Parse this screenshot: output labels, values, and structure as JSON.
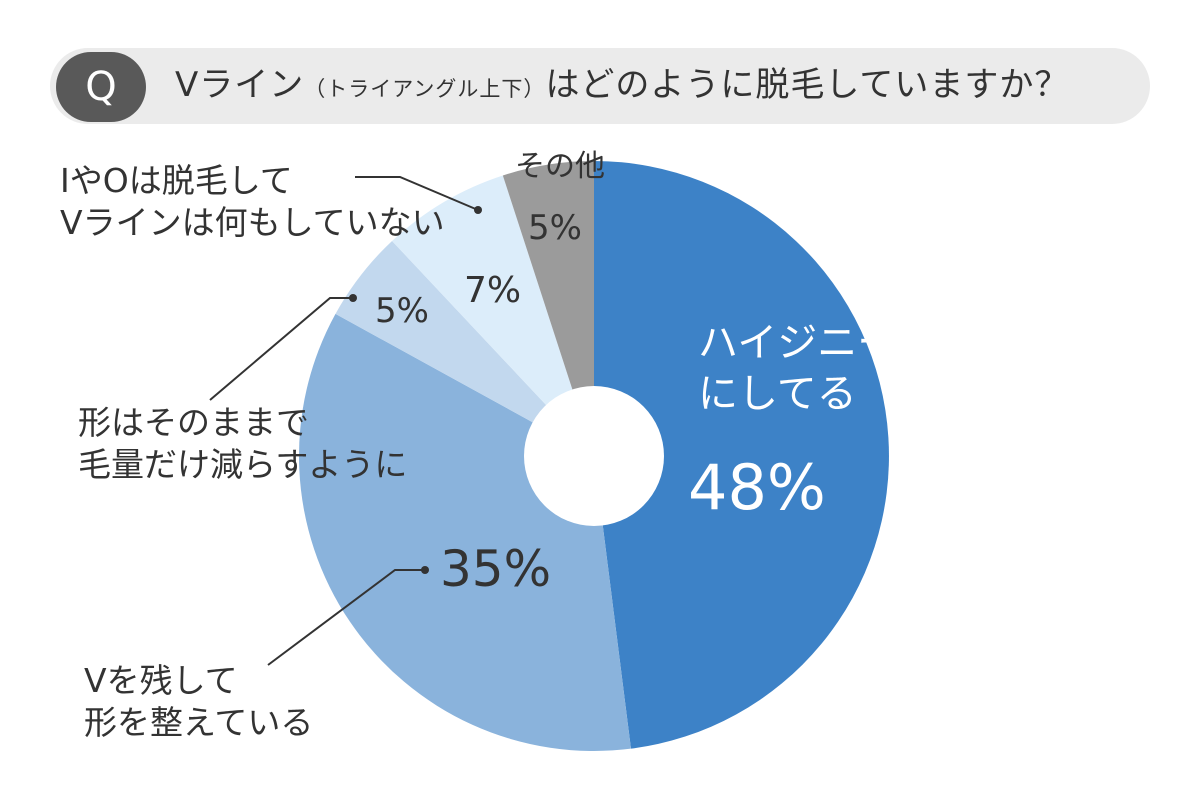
{
  "question": {
    "badge": "Q",
    "prefix": "Vライン",
    "paren": "（トライアングル上下）",
    "suffix": "はどのように脱毛していますか？"
  },
  "colors": {
    "haijinina": "#3d82c7",
    "v_keep": "#8ab3dc",
    "shape": "#c2d8ee",
    "io_only": "#dcedfa",
    "other": "#9b9b9b",
    "header_bg": "#ebebeb",
    "badge_bg": "#595959"
  },
  "labels": {
    "haijinina": [
      "ハイジニーナ",
      "にしてる"
    ],
    "haijinina_pct": "48%",
    "v_keep": [
      "Vを残して",
      "形を整えている"
    ],
    "v_keep_pct": "35%",
    "shape": [
      "形はそのままで",
      "毛量だけ減らすように"
    ],
    "shape_pct": "5%",
    "io_only": [
      "IやOは脱毛して",
      "Vラインは何もしていない"
    ],
    "io_only_pct": "7%",
    "other": "その他",
    "other_pct": "5%"
  },
  "chart_data": {
    "type": "pie",
    "donut": true,
    "categories": [
      "ハイジニーナにしてる",
      "Vを残して形を整えている",
      "形はそのままで毛量だけ減らすように",
      "IやOは脱毛してVラインは何もしていない",
      "その他"
    ],
    "values": [
      48,
      35,
      5,
      7,
      5
    ],
    "unit": "%"
  }
}
